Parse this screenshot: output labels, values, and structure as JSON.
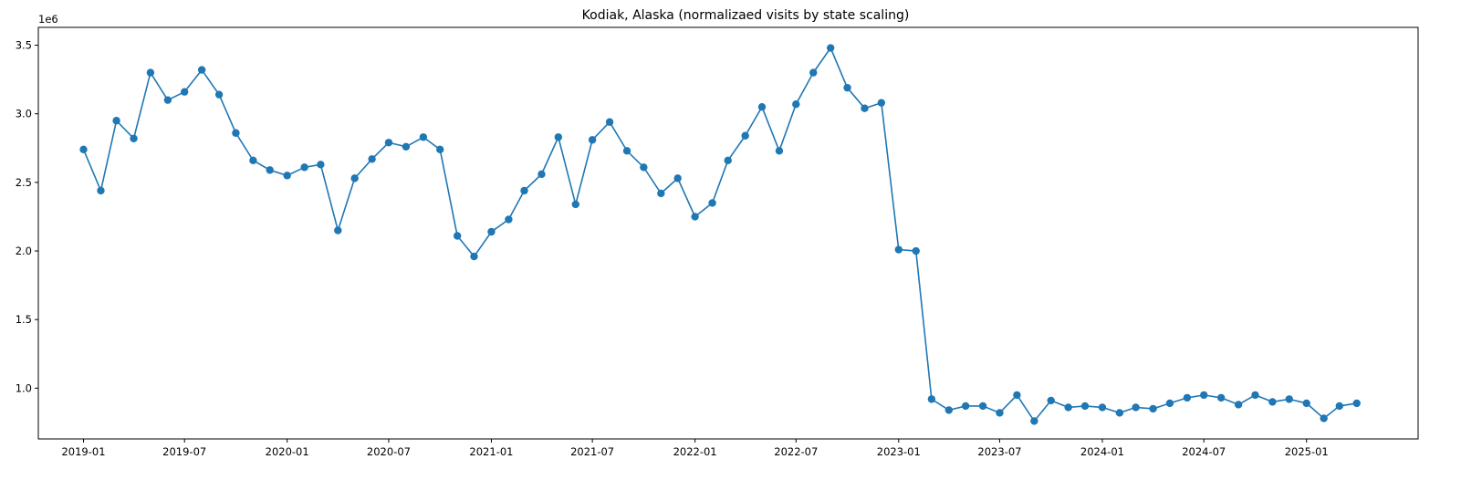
{
  "chart_data": {
    "type": "line",
    "title": "Kodiak, Alaska (normalizaed visits by state scaling)",
    "xlabel": "",
    "ylabel": "",
    "y_offset_text": "1e6",
    "ylim": [
      0.63,
      3.63
    ],
    "xlim": [
      "2018-10-12",
      "2025-07-20"
    ],
    "grid": false,
    "legend": "none",
    "line_color": "#1f77b4",
    "marker": "circle",
    "x_ticks": [
      "2019-01",
      "2019-07",
      "2020-01",
      "2020-07",
      "2021-01",
      "2021-07",
      "2022-01",
      "2022-07",
      "2023-01",
      "2023-07",
      "2024-01",
      "2024-07",
      "2025-01"
    ],
    "y_ticks": [
      "1.0",
      "1.5",
      "2.0",
      "2.5",
      "3.0",
      "3.5"
    ],
    "series": [
      {
        "x": [
          "2019-01",
          "2019-02",
          "2019-03",
          "2019-04",
          "2019-05",
          "2019-06",
          "2019-07",
          "2019-08",
          "2019-09",
          "2019-10",
          "2019-11",
          "2019-12",
          "2020-01",
          "2020-02",
          "2020-03",
          "2020-04",
          "2020-05",
          "2020-06",
          "2020-07",
          "2020-08",
          "2020-09",
          "2020-10",
          "2020-11",
          "2020-12",
          "2021-01",
          "2021-02",
          "2021-03",
          "2021-04",
          "2021-05",
          "2021-06",
          "2021-07",
          "2021-08",
          "2021-09",
          "2021-10",
          "2021-11",
          "2021-12",
          "2022-01",
          "2022-02",
          "2022-03",
          "2022-04",
          "2022-05",
          "2022-06",
          "2022-07",
          "2022-08",
          "2022-09",
          "2022-10",
          "2022-11",
          "2022-12",
          "2023-01",
          "2023-02",
          "2023-03",
          "2023-04",
          "2023-05",
          "2023-06",
          "2023-07",
          "2023-08",
          "2023-09",
          "2023-10",
          "2023-11",
          "2023-12",
          "2024-01",
          "2024-02",
          "2024-03",
          "2024-04",
          "2024-05",
          "2024-06",
          "2024-07",
          "2024-08",
          "2024-09",
          "2024-10",
          "2024-11",
          "2024-12",
          "2025-01",
          "2025-02",
          "2025-03",
          "2025-04"
        ],
        "y": [
          2.74,
          2.44,
          2.95,
          2.82,
          3.3,
          3.1,
          3.16,
          3.32,
          3.14,
          2.86,
          2.66,
          2.59,
          2.55,
          2.61,
          2.63,
          2.15,
          2.53,
          2.67,
          2.79,
          2.76,
          2.83,
          2.74,
          2.11,
          1.96,
          2.14,
          2.23,
          2.44,
          2.56,
          2.83,
          2.34,
          2.81,
          2.94,
          2.73,
          2.61,
          2.42,
          2.53,
          2.25,
          2.35,
          2.66,
          2.84,
          3.05,
          2.73,
          3.07,
          3.3,
          3.48,
          3.19,
          3.04,
          3.08,
          2.01,
          2.0,
          0.92,
          0.84,
          0.87,
          0.87,
          0.82,
          0.95,
          0.76,
          0.91,
          0.86,
          0.87,
          0.86,
          0.82,
          0.86,
          0.85,
          0.89,
          0.93,
          0.95,
          0.93,
          0.88,
          0.95,
          0.9,
          0.92,
          0.89,
          0.78,
          0.87,
          0.89
        ]
      }
    ]
  }
}
